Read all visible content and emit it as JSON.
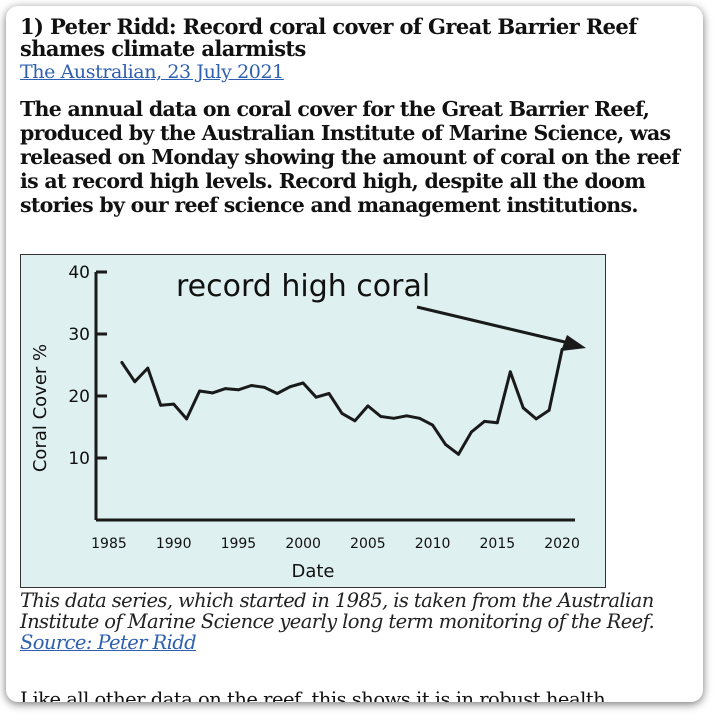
{
  "article": {
    "title": "1) Peter Ridd: Record coral cover of Great Barrier Reef shames climate alarmists",
    "source": "The Australian, 23 July 2021",
    "lead": "The annual data on coral cover for the Great Barrier Reef, produced by the Australian Institute of Marine Science, was released on Monday showing the amount of coral on the reef is at record high levels. Record high, despite all the doom stories by our reef science and management institutions.",
    "caption": "This data series, which started in 1985, is taken from the Australian Institute of Marine Science yearly long term monitoring of the Reef.",
    "caption_link": "Source: Peter Ridd",
    "closing": "Like all other data on the reef, this shows it is in robust health."
  },
  "chart_data": {
    "type": "line",
    "annotation": "record high coral",
    "xlabel": "Date",
    "ylabel": "Coral Cover %",
    "xlim": [
      1984,
      2021
    ],
    "ylim": [
      0,
      40
    ],
    "xticks": [
      1985,
      1990,
      1995,
      2000,
      2005,
      2010,
      2015,
      2020
    ],
    "yticks": [
      10,
      20,
      30,
      40
    ],
    "grid": false,
    "line_color": "#1a1a1a",
    "background_color": "#def0ef",
    "x": [
      1986,
      1987,
      1988,
      1989,
      1990,
      1991,
      1992,
      1993,
      1994,
      1995,
      1996,
      1997,
      1998,
      1999,
      2000,
      2001,
      2002,
      2003,
      2004,
      2005,
      2006,
      2007,
      2008,
      2009,
      2010,
      2011,
      2012,
      2013,
      2014,
      2015,
      2016,
      2017,
      2018,
      2019,
      2020
    ],
    "values": [
      25.4,
      22.3,
      24.5,
      18.5,
      18.7,
      16.3,
      20.8,
      20.5,
      21.2,
      21.0,
      21.7,
      21.4,
      20.4,
      21.5,
      22.1,
      19.8,
      20.4,
      17.2,
      16.0,
      18.4,
      16.7,
      16.4,
      16.8,
      16.4,
      15.3,
      12.2,
      10.6,
      14.2,
      15.9,
      15.7,
      23.9,
      18.1,
      16.3,
      17.7,
      27.5
    ]
  }
}
